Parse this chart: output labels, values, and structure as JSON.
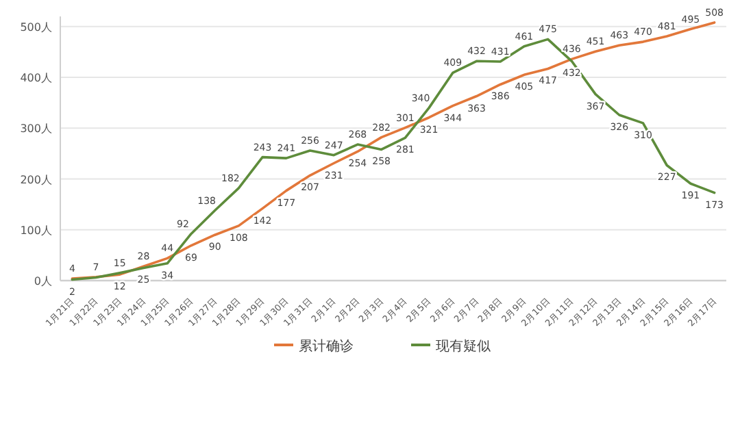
{
  "chart_data": {
    "type": "line",
    "categories": [
      "1月21日",
      "1月22日",
      "1月23日",
      "1月24日",
      "1月25日",
      "1月26日",
      "1月27日",
      "1月28日",
      "1月29日",
      "1月30日",
      "1月31日",
      "2月1日",
      "2月2日",
      "2月3日",
      "2月4日",
      "2月5日",
      "2月6日",
      "2月7日",
      "2月8日",
      "2月9日",
      "2月10日",
      "2月11日",
      "2月12日",
      "2月13日",
      "2月14日",
      "2月15日",
      "2月16日",
      "2月17日"
    ],
    "series": [
      {
        "name": "累计确诊",
        "color": "#e2773a",
        "values": [
          4,
          7,
          12,
          28,
          44,
          69,
          90,
          108,
          142,
          177,
          207,
          231,
          254,
          282,
          301,
          321,
          344,
          363,
          386,
          405,
          417,
          436,
          451,
          463,
          470,
          481,
          495,
          508
        ]
      },
      {
        "name": "现有疑似",
        "color": "#5e8c3b",
        "values": [
          2,
          6,
          15,
          25,
          34,
          92,
          138,
          182,
          243,
          241,
          256,
          247,
          268,
          258,
          281,
          340,
          409,
          432,
          431,
          461,
          475,
          432,
          367,
          326,
          310,
          227,
          191,
          173
        ],
        "value_labels": [
          "2",
          null,
          "15",
          "25",
          "34",
          "92",
          "138",
          "182",
          "243",
          "241",
          "256",
          "247",
          "268",
          "258",
          "281",
          "340",
          "409",
          "432",
          "431",
          "461",
          "475",
          "432",
          "367",
          "326",
          "310",
          "227",
          "191",
          "173"
        ]
      }
    ],
    "ylim": [
      0,
      520
    ],
    "yticks": [
      {
        "value": 0,
        "label": "0人"
      },
      {
        "value": 100,
        "label": "100人"
      },
      {
        "value": 200,
        "label": "200人"
      },
      {
        "value": 300,
        "label": "300人"
      },
      {
        "value": 400,
        "label": "400人"
      },
      {
        "value": 500,
        "label": "500人"
      }
    ],
    "grid": "y",
    "legend": "bottom",
    "data_labels": true
  }
}
